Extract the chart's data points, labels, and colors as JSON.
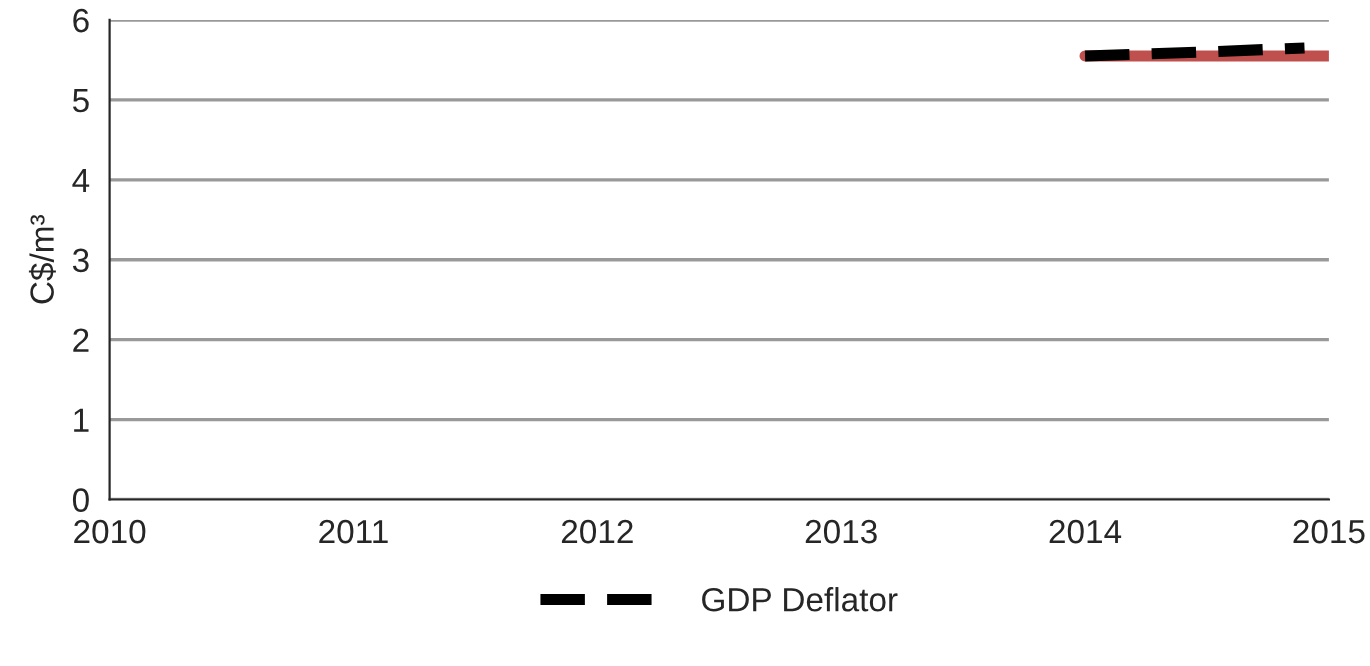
{
  "chart_data": {
    "type": "line",
    "ylabel": "C$/m³",
    "xlim": [
      2010,
      2015
    ],
    "xticks": [
      2010,
      2011,
      2012,
      2013,
      2014,
      2015
    ],
    "ylim": [
      0,
      6
    ],
    "yticks": [
      0,
      1,
      2,
      3,
      4,
      5,
      6
    ],
    "grid": "y",
    "legend": "bottom",
    "series": [
      {
        "color": "#c0504d",
        "line_style": "solid",
        "x": [
          2014,
          2015
        ],
        "values": [
          5.55,
          5.55
        ]
      },
      {
        "name": "GDP Deflator",
        "color": "#000000",
        "line_style": "dashed",
        "x": [
          2014,
          2014.5,
          2014.9
        ],
        "values": [
          5.55,
          5.6,
          5.65
        ]
      }
    ]
  }
}
